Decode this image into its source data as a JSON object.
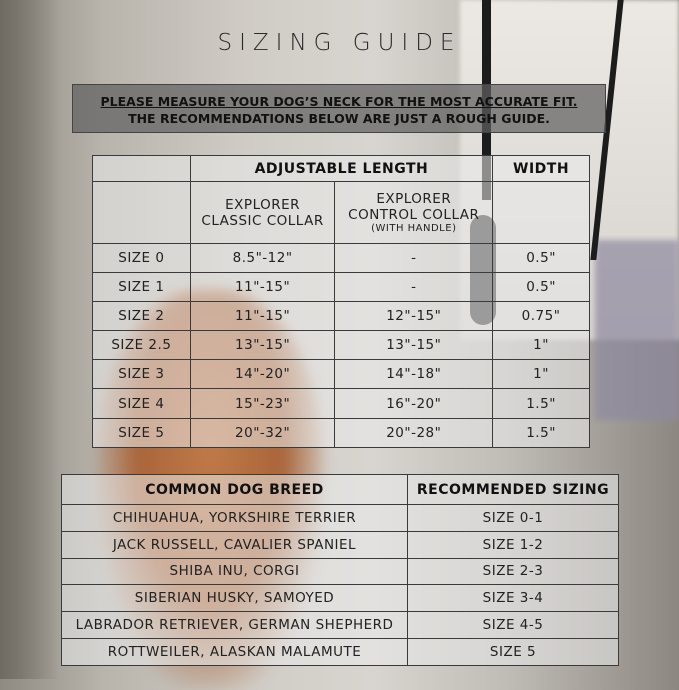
{
  "title": "SIZING GUIDE",
  "banner": {
    "line1": "PLEASE MEASURE YOUR DOG’S NECK FOR THE MOST ACCURATE FIT.",
    "line2": "THE RECOMMENDATIONS BELOW ARE JUST A ROUGH GUIDE."
  },
  "size_table": {
    "group_headers": [
      "ADJUSTABLE LENGTH",
      "WIDTH"
    ],
    "col1": {
      "line1": "EXPLORER",
      "line2": "CLASSIC COLLAR"
    },
    "col2": {
      "line1": "EXPLORER",
      "line2": "CONTROL COLLAR",
      "note": "(WITH HANDLE)"
    },
    "rows": [
      [
        "SIZE 0",
        "8.5\"-12\"",
        "-",
        "0.5\""
      ],
      [
        "SIZE 1",
        "11\"-15\"",
        "-",
        "0.5\""
      ],
      [
        "SIZE 2",
        "11\"-15\"",
        "12\"-15\"",
        "0.75\""
      ],
      [
        "SIZE 2.5",
        "13\"-15\"",
        "13\"-15\"",
        "1\""
      ],
      [
        "SIZE 3",
        "14\"-20\"",
        "14\"-18\"",
        "1\""
      ],
      [
        "SIZE 4",
        "15\"-23\"",
        "16\"-20\"",
        "1.5\""
      ],
      [
        "SIZE 5",
        "20\"-32\"",
        "20\"-28\"",
        "1.5\""
      ]
    ]
  },
  "breed_table": {
    "headers": [
      "COMMON DOG BREED",
      "RECOMMENDED SIZING"
    ],
    "rows": [
      [
        "CHIHUAHUA, YORKSHIRE TERRIER",
        "SIZE 0-1"
      ],
      [
        "JACK RUSSELL, CAVALIER SPANIEL",
        "SIZE 1-2"
      ],
      [
        "SHIBA INU, CORGI",
        "SIZE 2-3"
      ],
      [
        "SIBERIAN HUSKY, SAMOYED",
        "SIZE 3-4"
      ],
      [
        "LABRADOR RETRIEVER, GERMAN SHEPHERD",
        "SIZE 4-5"
      ],
      [
        "ROTTWEILER, ALASKAN MALAMUTE",
        "SIZE 5"
      ]
    ]
  }
}
